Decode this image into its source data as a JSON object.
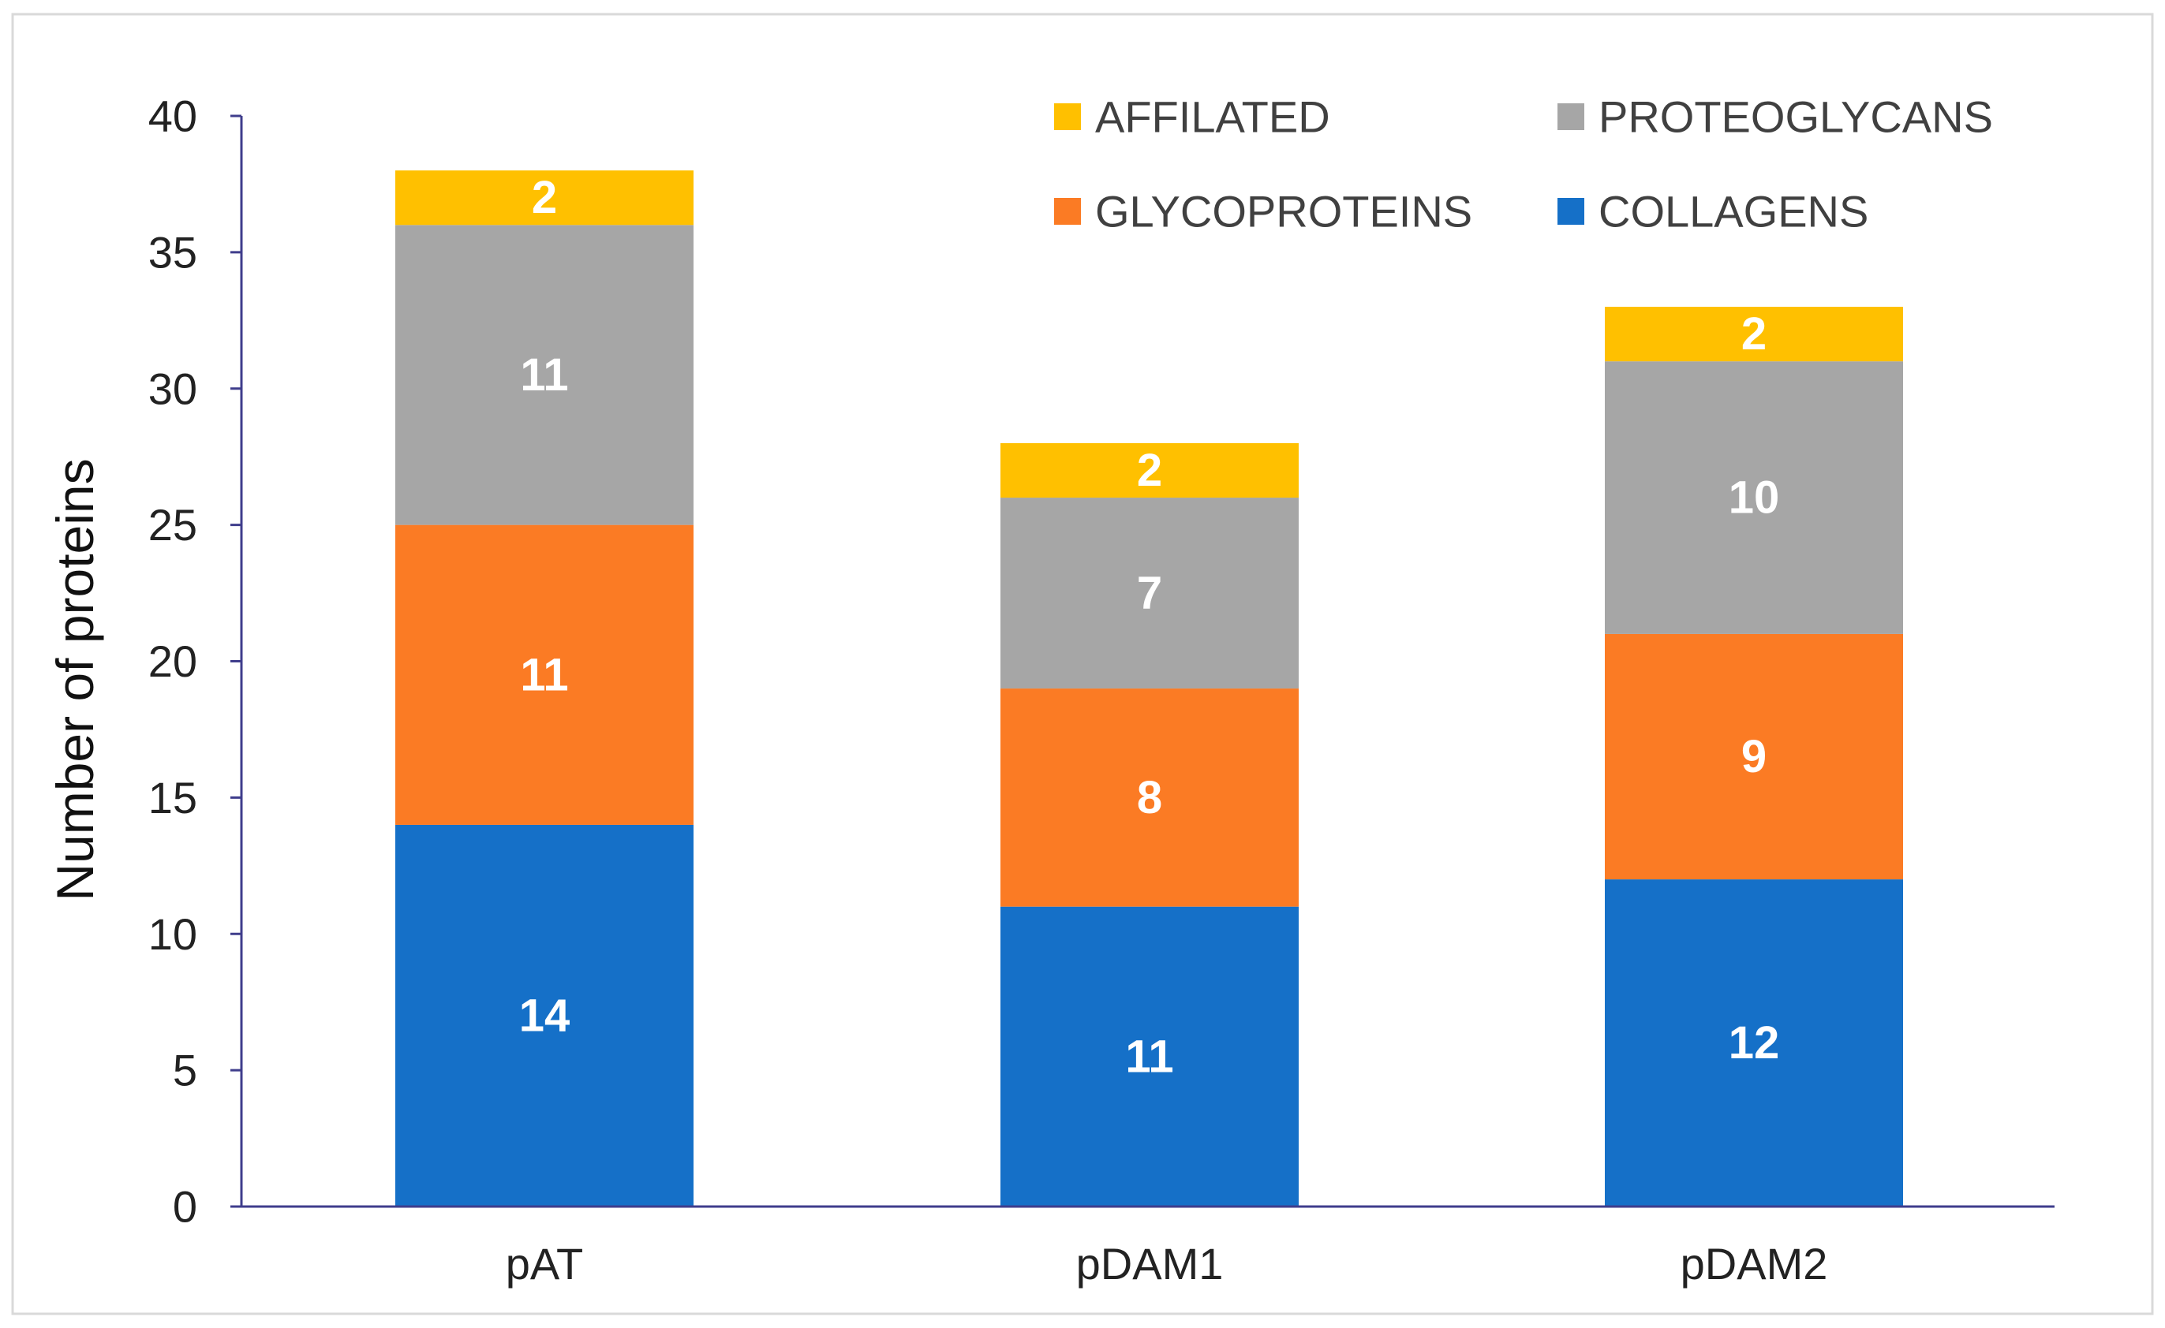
{
  "chart_data": {
    "type": "bar",
    "stacked": true,
    "title": "",
    "xlabel": "",
    "ylabel": "Number of proteins",
    "ylim": [
      0,
      40
    ],
    "yticks": [
      0,
      5,
      10,
      15,
      20,
      25,
      30,
      35,
      40
    ],
    "grid": false,
    "legend_position": "top-right",
    "categories": [
      "pAT",
      "pDAM1",
      "pDAM2"
    ],
    "series": [
      {
        "name": "COLLAGENS",
        "color": "#1570C8",
        "values": [
          14,
          11,
          12
        ]
      },
      {
        "name": "GLYCOPROTEINS",
        "color": "#FB7B24",
        "values": [
          11,
          8,
          9
        ]
      },
      {
        "name": "PROTEOGLYCANS",
        "color": "#A6A6A6",
        "values": [
          11,
          7,
          10
        ]
      },
      {
        "name": "AFFILATED",
        "color": "#FFC000",
        "values": [
          2,
          2,
          2
        ]
      }
    ],
    "legend_order": [
      "AFFILATED",
      "PROTEOGLYCANS",
      "GLYCOPROTEINS",
      "COLLAGENS"
    ],
    "axis_color": "#3F3D8C",
    "frame_color": "#D9D9D9",
    "label_color": "#FFFFFF"
  }
}
